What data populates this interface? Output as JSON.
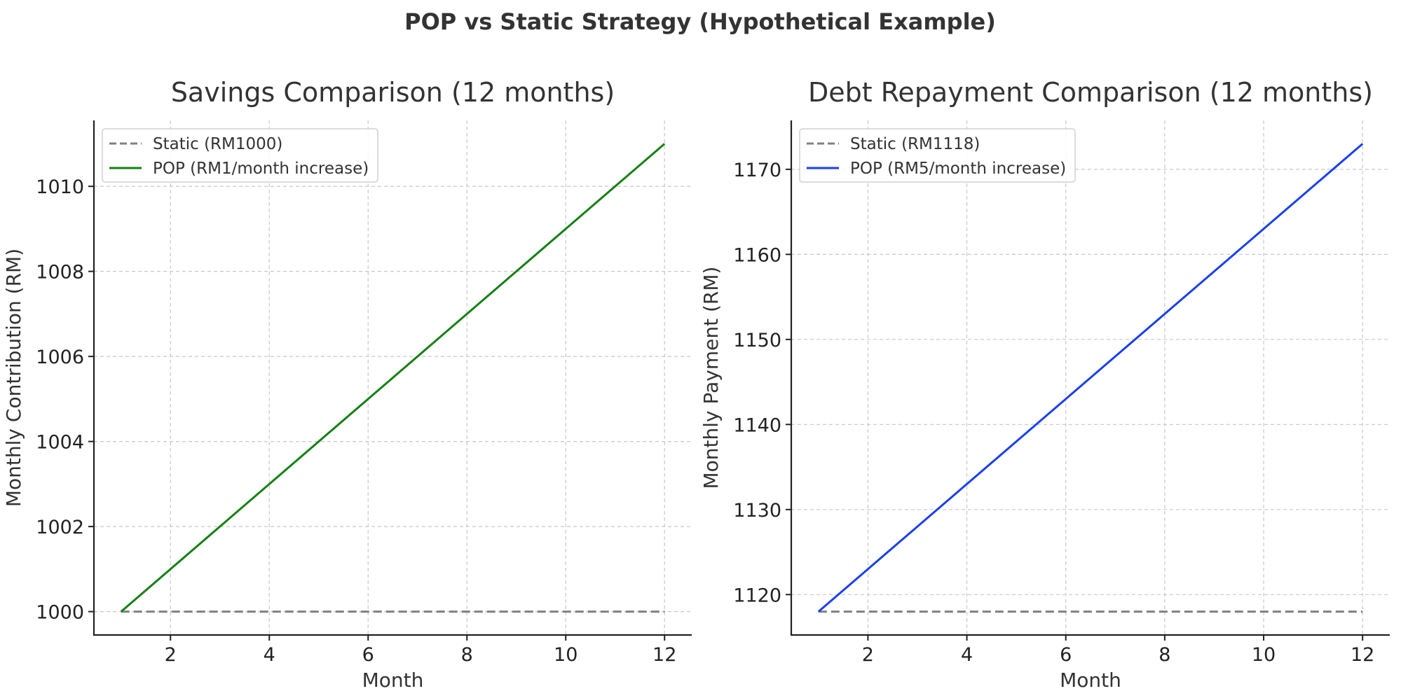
{
  "figure": {
    "title": "POP vs Static Strategy (Hypothetical Example)"
  },
  "chart_data": [
    {
      "type": "line",
      "title": "Savings Comparison (12 months)",
      "xlabel": "Month",
      "ylabel": "Monthly Contribution (RM)",
      "xlim": [
        0.45,
        12.55
      ],
      "ylim": [
        999.45,
        1011.55
      ],
      "xticks": [
        2,
        4,
        6,
        8,
        10,
        12
      ],
      "yticks": [
        1000,
        1002,
        1004,
        1006,
        1008,
        1010
      ],
      "grid": true,
      "legend_position": "top-left",
      "x": [
        1,
        2,
        3,
        4,
        5,
        6,
        7,
        8,
        9,
        10,
        11,
        12
      ],
      "series": [
        {
          "name": "Static (RM1000)",
          "style": "dashed",
          "color": "#808080",
          "values": [
            1000,
            1000,
            1000,
            1000,
            1000,
            1000,
            1000,
            1000,
            1000,
            1000,
            1000,
            1000
          ]
        },
        {
          "name": "POP (RM1/month increase)",
          "style": "solid",
          "color": "#138013",
          "values": [
            1000,
            1001,
            1002,
            1003,
            1004,
            1005,
            1006,
            1007,
            1008,
            1009,
            1010,
            1011
          ]
        }
      ]
    },
    {
      "type": "line",
      "title": "Debt Repayment Comparison (12 months)",
      "xlabel": "Month",
      "ylabel": "Monthly Payment (RM)",
      "xlim": [
        0.45,
        12.55
      ],
      "ylim": [
        1115.25,
        1175.75
      ],
      "xticks": [
        2,
        4,
        6,
        8,
        10,
        12
      ],
      "yticks": [
        1120,
        1130,
        1140,
        1150,
        1160,
        1170
      ],
      "grid": true,
      "legend_position": "top-left",
      "x": [
        1,
        2,
        3,
        4,
        5,
        6,
        7,
        8,
        9,
        10,
        11,
        12
      ],
      "series": [
        {
          "name": "Static (RM1118)",
          "style": "dashed",
          "color": "#808080",
          "values": [
            1118,
            1118,
            1118,
            1118,
            1118,
            1118,
            1118,
            1118,
            1118,
            1118,
            1118,
            1118
          ]
        },
        {
          "name": "POP (RM5/month increase)",
          "style": "solid",
          "color": "#1a3ff0",
          "values": [
            1118,
            1123,
            1128,
            1133,
            1138,
            1143,
            1148,
            1153,
            1158,
            1163,
            1168,
            1173
          ]
        }
      ]
    }
  ]
}
